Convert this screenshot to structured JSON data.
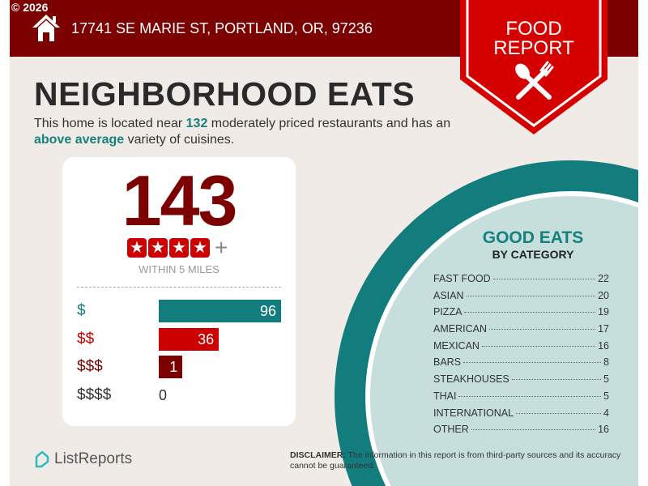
{
  "copyright": "© 2026",
  "header": {
    "address": "17741 SE MARIE ST, PORTLAND, OR, 97236",
    "icon": "home-icon"
  },
  "banner": {
    "line1": "FOOD",
    "line2": "REPORT",
    "icon": "utensils-icon"
  },
  "title": "NEIGHBORHOOD EATS",
  "intro": {
    "part1": "This home is located near ",
    "count": "132",
    "part2": " moderately priced restaurants and has an ",
    "rating": "above average",
    "part3": " variety of cuisines."
  },
  "summary": {
    "total": "143",
    "stars": 4,
    "plus": "+",
    "within": "WITHIN 5 MILES"
  },
  "price_levels": [
    {
      "label": "$",
      "value": 96,
      "color": "#137d7d"
    },
    {
      "label": "$$",
      "value": 36,
      "color": "#cc0000"
    },
    {
      "label": "$$$",
      "value": 1,
      "color": "#7d0000"
    },
    {
      "label": "$$$$",
      "value": 0,
      "color": "#333333"
    }
  ],
  "categories": {
    "title": "GOOD EATS",
    "subtitle": "BY CATEGORY",
    "items": [
      {
        "name": "FAST FOOD",
        "count": "22"
      },
      {
        "name": "ASIAN",
        "count": "20"
      },
      {
        "name": "PIZZA",
        "count": "19"
      },
      {
        "name": "AMERICAN",
        "count": "17"
      },
      {
        "name": "MEXICAN",
        "count": "16"
      },
      {
        "name": "BARS",
        "count": "8"
      },
      {
        "name": "STEAKHOUSES",
        "count": "5"
      },
      {
        "name": "THAI",
        "count": "5"
      },
      {
        "name": "INTERNATIONAL",
        "count": "4"
      },
      {
        "name": "OTHER",
        "count": "16"
      }
    ]
  },
  "footer": {
    "logo": "ListReports",
    "disclaimer_label": "DISCLAIMER:",
    "disclaimer": " The information in this report is from third-party sources and its accuracy cannot be guaranteed."
  },
  "colors": {
    "dark_red": "#7d0000",
    "red": "#cc0000",
    "teal": "#137d7d",
    "light_teal": "#c6dfdd",
    "background": "#f0ebe7"
  }
}
